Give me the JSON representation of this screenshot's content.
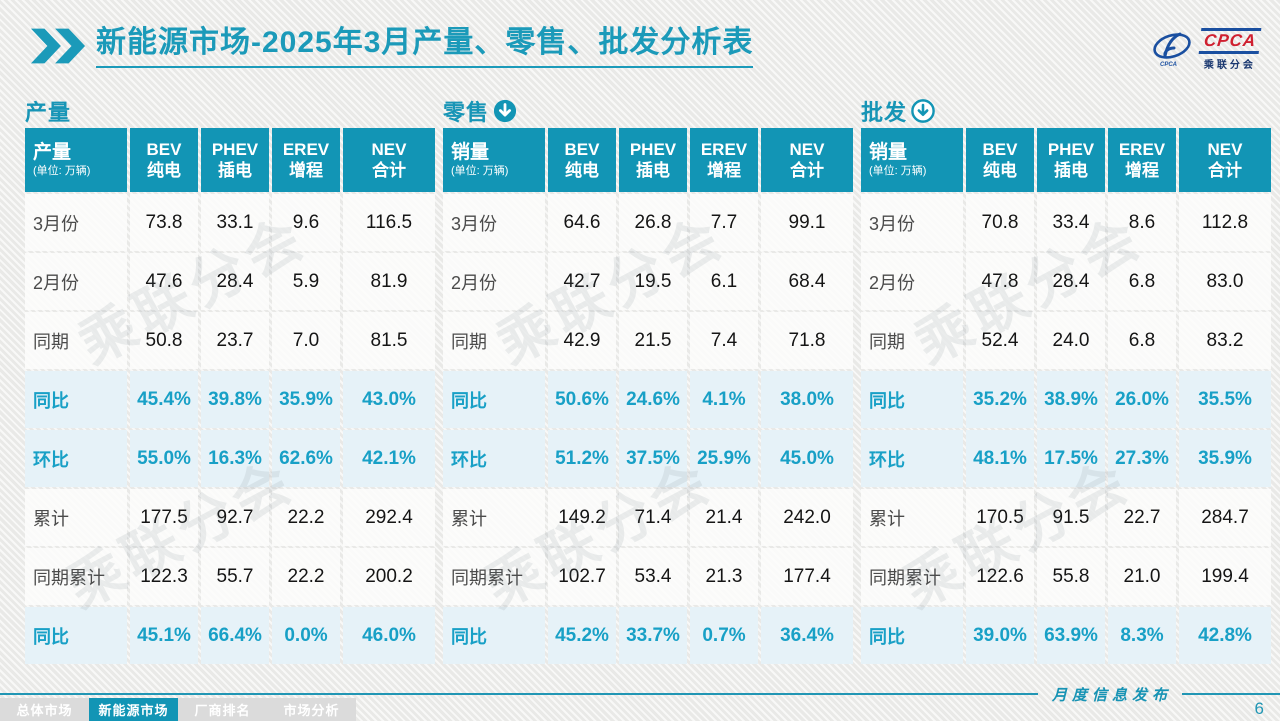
{
  "title": {
    "brand": "新能源市场",
    "rest": "-2025年3月产量、零售、批发分析表"
  },
  "logo": {
    "acronym": "CPCA",
    "name": "乘联分会"
  },
  "watermark": "乘联分会",
  "accent_color": "#1295b5",
  "highlight_row_color": "#e6f2f8",
  "tables": [
    {
      "name": "production",
      "section_label": "产量",
      "arrow": "none",
      "header": {
        "label": "产量",
        "unit": "(单位: 万辆)",
        "cols": [
          [
            "BEV",
            "纯电"
          ],
          [
            "PHEV",
            "插电"
          ],
          [
            "EREV",
            "增程"
          ],
          [
            "NEV",
            "合计"
          ]
        ]
      },
      "rows": [
        {
          "label": "3月份",
          "type": "normal",
          "values": [
            "73.8",
            "33.1",
            "9.6",
            "116.5"
          ]
        },
        {
          "label": "2月份",
          "type": "normal",
          "values": [
            "47.6",
            "28.4",
            "5.9",
            "81.9"
          ]
        },
        {
          "label": "同期",
          "type": "normal",
          "values": [
            "50.8",
            "23.7",
            "7.0",
            "81.5"
          ]
        },
        {
          "label": "同比",
          "type": "highlight",
          "values": [
            "45.4%",
            "39.8%",
            "35.9%",
            "43.0%"
          ]
        },
        {
          "label": "环比",
          "type": "highlight",
          "values": [
            "55.0%",
            "16.3%",
            "62.6%",
            "42.1%"
          ]
        },
        {
          "label": "累计",
          "type": "normal",
          "values": [
            "177.5",
            "92.7",
            "22.2",
            "292.4"
          ]
        },
        {
          "label": "同期累计",
          "type": "normal",
          "values": [
            "122.3",
            "55.7",
            "22.2",
            "200.2"
          ]
        },
        {
          "label": "同比",
          "type": "highlight",
          "values": [
            "45.1%",
            "66.4%",
            "0.0%",
            "46.0%"
          ]
        }
      ]
    },
    {
      "name": "retail",
      "section_label": "零售",
      "arrow": "filled",
      "header": {
        "label": "销量",
        "unit": "(单位: 万辆)",
        "cols": [
          [
            "BEV",
            "纯电"
          ],
          [
            "PHEV",
            "插电"
          ],
          [
            "EREV",
            "增程"
          ],
          [
            "NEV",
            "合计"
          ]
        ]
      },
      "rows": [
        {
          "label": "3月份",
          "type": "normal",
          "values": [
            "64.6",
            "26.8",
            "7.7",
            "99.1"
          ]
        },
        {
          "label": "2月份",
          "type": "normal",
          "values": [
            "42.7",
            "19.5",
            "6.1",
            "68.4"
          ]
        },
        {
          "label": "同期",
          "type": "normal",
          "values": [
            "42.9",
            "21.5",
            "7.4",
            "71.8"
          ]
        },
        {
          "label": "同比",
          "type": "highlight",
          "values": [
            "50.6%",
            "24.6%",
            "4.1%",
            "38.0%"
          ]
        },
        {
          "label": "环比",
          "type": "highlight",
          "values": [
            "51.2%",
            "37.5%",
            "25.9%",
            "45.0%"
          ]
        },
        {
          "label": "累计",
          "type": "normal",
          "values": [
            "149.2",
            "71.4",
            "21.4",
            "242.0"
          ]
        },
        {
          "label": "同期累计",
          "type": "normal",
          "values": [
            "102.7",
            "53.4",
            "21.3",
            "177.4"
          ]
        },
        {
          "label": "同比",
          "type": "highlight",
          "values": [
            "45.2%",
            "33.7%",
            "0.7%",
            "36.4%"
          ]
        }
      ]
    },
    {
      "name": "wholesale",
      "section_label": "批发",
      "arrow": "outline",
      "header": {
        "label": "销量",
        "unit": "(单位: 万辆)",
        "cols": [
          [
            "BEV",
            "纯电"
          ],
          [
            "PHEV",
            "插电"
          ],
          [
            "EREV",
            "增程"
          ],
          [
            "NEV",
            "合计"
          ]
        ]
      },
      "rows": [
        {
          "label": "3月份",
          "type": "normal",
          "values": [
            "70.8",
            "33.4",
            "8.6",
            "112.8"
          ]
        },
        {
          "label": "2月份",
          "type": "normal",
          "values": [
            "47.8",
            "28.4",
            "6.8",
            "83.0"
          ]
        },
        {
          "label": "同期",
          "type": "normal",
          "values": [
            "52.4",
            "24.0",
            "6.8",
            "83.2"
          ]
        },
        {
          "label": "同比",
          "type": "highlight",
          "values": [
            "35.2%",
            "38.9%",
            "26.0%",
            "35.5%"
          ]
        },
        {
          "label": "环比",
          "type": "highlight",
          "values": [
            "48.1%",
            "17.5%",
            "27.3%",
            "35.9%"
          ]
        },
        {
          "label": "累计",
          "type": "normal",
          "values": [
            "170.5",
            "91.5",
            "22.7",
            "284.7"
          ]
        },
        {
          "label": "同期累计",
          "type": "normal",
          "values": [
            "122.6",
            "55.8",
            "21.0",
            "199.4"
          ]
        },
        {
          "label": "同比",
          "type": "highlight",
          "values": [
            "39.0%",
            "63.9%",
            "8.3%",
            "42.8%"
          ]
        }
      ]
    }
  ],
  "footer": {
    "publication": "月度信息发布",
    "page_number": "6",
    "tabs": [
      {
        "key": "overall-market",
        "label": "总体市场",
        "active": false
      },
      {
        "key": "nev-market",
        "label": "新能源市场",
        "active": true
      },
      {
        "key": "oem-ranking",
        "label": "厂商排名",
        "active": false
      },
      {
        "key": "market-analysis",
        "label": "市场分析",
        "active": false
      }
    ]
  }
}
